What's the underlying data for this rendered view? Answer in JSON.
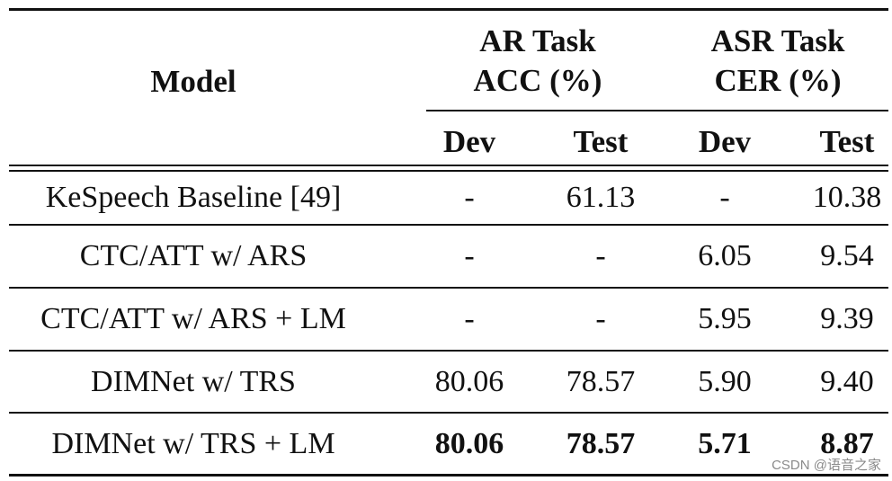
{
  "header": {
    "model_label": "Model",
    "ar_task_line1": "AR Task",
    "ar_task_line2": "ACC (%)",
    "asr_task_line1": "ASR Task",
    "asr_task_line2": "CER (%)",
    "ar_dev": "Dev",
    "ar_test": "Test",
    "asr_dev": "Dev",
    "asr_test": "Test"
  },
  "rows": [
    {
      "model": "KeSpeech Baseline [49]",
      "ar_dev": "-",
      "ar_test": "61.13",
      "asr_dev": "-",
      "asr_test": "10.38"
    },
    {
      "model": "CTC/ATT w/ ARS",
      "ar_dev": "-",
      "ar_test": "-",
      "asr_dev": "6.05",
      "asr_test": "9.54"
    },
    {
      "model": "CTC/ATT w/ ARS + LM",
      "ar_dev": "-",
      "ar_test": "-",
      "asr_dev": "5.95",
      "asr_test": "9.39"
    },
    {
      "model": "DIMNet w/ TRS",
      "ar_dev": "80.06",
      "ar_test": "78.57",
      "asr_dev": "5.90",
      "asr_test": "9.40"
    },
    {
      "model": "DIMNet w/ TRS + LM",
      "ar_dev": "80.06",
      "ar_test": "78.57",
      "asr_dev": "5.71",
      "asr_test": "8.87",
      "bold_values": true
    }
  ],
  "watermark": "CSDN @语音之家"
}
